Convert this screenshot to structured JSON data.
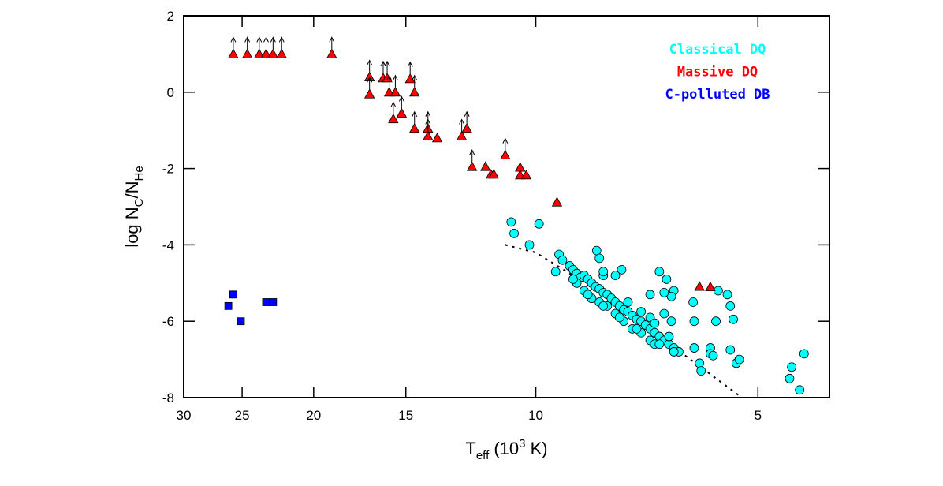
{
  "chart_data": {
    "type": "scatter",
    "xlabel": [
      {
        "text": "T"
      },
      {
        "text": "eff",
        "shift": "sub"
      },
      {
        "text": " (10"
      },
      {
        "text": "3",
        "shift": "super"
      },
      {
        "text": " K)"
      }
    ],
    "ylabel": [
      {
        "text": "log N"
      },
      {
        "text": "C",
        "shift": "sub"
      },
      {
        "text": "/N"
      },
      {
        "text": "He",
        "shift": "sub"
      }
    ],
    "xscale": "log",
    "xlim": [
      30,
      4
    ],
    "xticks": [
      30,
      25,
      20,
      15,
      10,
      5
    ],
    "ylim": [
      -8,
      2
    ],
    "yticks": [
      -8,
      -6,
      -4,
      -2,
      0,
      2
    ],
    "legend": "upper right",
    "series": [
      {
        "marker": "line",
        "style": "dotted",
        "color": "#000000",
        "x": [
          11.0,
          10.0,
          8.2,
          6.72,
          5.29
        ],
        "values": [
          -4.0,
          -4.2,
          -5.23,
          -6.47,
          -7.96
        ]
      },
      {
        "name": "Classical DQ",
        "marker": "circle",
        "color": "#00ffff",
        "x": [
          10.8,
          10.7,
          9.9,
          10.2,
          9.4,
          9.3,
          9.2,
          9.0,
          8.9,
          8.8,
          8.7,
          8.6,
          8.5,
          8.4,
          8.3,
          8.2,
          8.1,
          8.0,
          7.9,
          7.8,
          7.7,
          7.6,
          7.5,
          7.4,
          7.3,
          7.2,
          7.1,
          7.0,
          6.9,
          6.8,
          6.7,
          6.6,
          6.5,
          6.4,
          8.8,
          8.6,
          8.4,
          8.2,
          8.0,
          7.8,
          7.6,
          7.4,
          7.2,
          7.0,
          6.9,
          8.9,
          8.5,
          8.1,
          7.7,
          7.3,
          6.8,
          6.6,
          7.0,
          7.5,
          8.27,
          8.2,
          7.65,
          8.1,
          7.0,
          6.8,
          6.65,
          6.5,
          6.55,
          6.12,
          5.66,
          5.5,
          5.45,
          5.4,
          5.7,
          6.1,
          6.55,
          6.7,
          6.9,
          6.1,
          6.0,
          5.97,
          5.8,
          5.8,
          5.75,
          5.45,
          5.35,
          5.3,
          4.5,
          4.53,
          4.39,
          4.33,
          6.5,
          7.2,
          6.7,
          7.8,
          8.1
        ],
        "values": [
          -3.4,
          -3.7,
          -3.45,
          -4.0,
          -4.7,
          -4.25,
          -4.4,
          -4.55,
          -4.65,
          -4.75,
          -4.85,
          -4.8,
          -4.9,
          -5.0,
          -5.1,
          -5.15,
          -5.25,
          -5.3,
          -5.4,
          -5.5,
          -5.6,
          -5.7,
          -5.75,
          -5.85,
          -5.95,
          -6.0,
          -6.1,
          -6.2,
          -6.3,
          -6.4,
          -6.5,
          -6.6,
          -6.7,
          -6.8,
          -5.0,
          -5.2,
          -5.4,
          -5.5,
          -5.6,
          -5.8,
          -6.0,
          -6.2,
          -6.3,
          -6.5,
          -6.6,
          -4.9,
          -5.3,
          -5.6,
          -5.9,
          -6.2,
          -6.6,
          -6.4,
          -5.9,
          -5.5,
          -4.15,
          -4.35,
          -4.65,
          -4.8,
          -5.3,
          -4.7,
          -4.9,
          -5.2,
          -5.35,
          -5.5,
          -5.2,
          -5.3,
          -5.6,
          -5.95,
          -6.0,
          -6.0,
          -6.0,
          -5.8,
          -6.05,
          -6.7,
          -7.1,
          -7.3,
          -6.7,
          -6.85,
          -6.9,
          -6.75,
          -7.1,
          -7.0,
          -7.2,
          -7.5,
          -7.8,
          -6.85,
          -6.8,
          -5.75,
          -5.25,
          -4.8,
          -4.7
        ]
      },
      {
        "name": "Massive DQ",
        "marker": "triangle",
        "color": "#ff0000",
        "x": [
          25.7,
          24.6,
          23.7,
          23.2,
          22.7,
          22.1,
          18.9,
          16.8,
          16.8,
          16.1,
          15.9,
          15.8,
          15.5,
          14.8,
          14.6,
          15.6,
          15.2,
          14.6,
          14.0,
          14.0,
          13.6,
          12.6,
          12.4,
          12.2,
          11.7,
          11.5,
          11.4,
          11.0,
          10.5,
          10.5,
          10.3,
          9.36,
          6.0,
          5.8
        ],
        "values": [
          1.0,
          1.0,
          1.0,
          1.0,
          1.0,
          1.0,
          1.0,
          0.4,
          -0.05,
          0.37,
          0.37,
          0.0,
          0.0,
          0.35,
          0.0,
          -0.7,
          -0.55,
          -0.95,
          -0.95,
          -1.15,
          -1.2,
          -1.15,
          -0.95,
          -1.95,
          -1.95,
          -2.15,
          -2.15,
          -1.65,
          -1.97,
          -2.17,
          -2.17,
          -2.88,
          -5.09,
          -5.1
        ],
        "lower_limit": [
          true,
          true,
          true,
          true,
          true,
          true,
          true,
          true,
          true,
          true,
          true,
          true,
          true,
          true,
          true,
          true,
          true,
          true,
          true,
          true,
          false,
          true,
          true,
          true,
          false,
          false,
          false,
          true,
          false,
          false,
          false,
          false,
          false,
          false
        ]
      },
      {
        "name": "C-polluted DB",
        "marker": "square",
        "color": "#0000ff",
        "x": [
          26.1,
          25.7,
          25.1,
          23.2,
          22.7
        ],
        "values": [
          -5.6,
          -5.3,
          -6.0,
          -5.5,
          -5.5
        ]
      }
    ]
  }
}
